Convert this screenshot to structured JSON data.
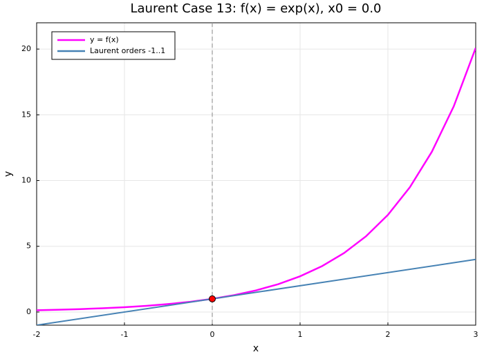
{
  "chart_data": {
    "type": "line",
    "title": "Laurent Case 13: f(x) = exp(x), x0 = 0.0",
    "x_label": "x",
    "y_label": "y",
    "xlim": [
      -2,
      3
    ],
    "ylim": [
      -1,
      22
    ],
    "xticks": [
      -2,
      -1,
      0,
      1,
      2,
      3
    ],
    "yticks": [
      0,
      5,
      10,
      15,
      20
    ],
    "grid": true,
    "legend": "top-left",
    "series": [
      {
        "name": "y = f(x)",
        "color": "#ff00ff",
        "x": [
          -2,
          -1.75,
          -1.5,
          -1.25,
          -1,
          -0.75,
          -0.5,
          -0.25,
          0,
          0.25,
          0.5,
          0.75,
          1,
          1.25,
          1.5,
          1.75,
          2,
          2.25,
          2.5,
          2.75,
          3
        ],
        "values": [
          0.135,
          0.174,
          0.223,
          0.287,
          0.368,
          0.472,
          0.607,
          0.779,
          1,
          1.284,
          1.649,
          2.117,
          2.718,
          3.49,
          4.482,
          5.755,
          7.389,
          9.488,
          12.182,
          15.643,
          20.086
        ]
      },
      {
        "name": "Laurent orders -1..1",
        "color": "#4682b4",
        "x": [
          -2,
          3
        ],
        "values": [
          -1,
          4
        ]
      }
    ],
    "points": {
      "x": [
        0
      ],
      "values": [
        1
      ],
      "color": "#ff0000"
    },
    "vline": {
      "x": 0,
      "color": "#999999"
    }
  }
}
